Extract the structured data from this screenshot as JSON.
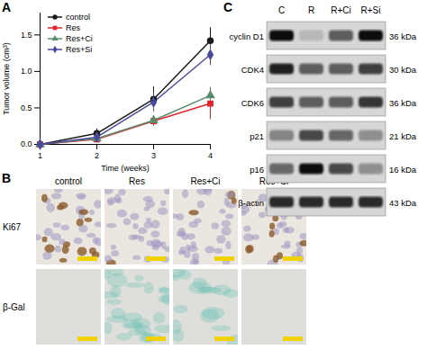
{
  "chart_data": {
    "type": "line",
    "x": [
      1,
      2,
      3,
      4
    ],
    "xlabel": "Time (weeks)",
    "ylabel": "Tumor volume (cm³)",
    "xlim": [
      1,
      4
    ],
    "ylim": [
      0,
      1.8
    ],
    "xticks": [
      1,
      2,
      3,
      4
    ],
    "yticks": [
      {
        "value": 0,
        "label": "0.0"
      },
      {
        "value": 0.5,
        "label": "0.5"
      },
      {
        "value": 1,
        "label": "1.0"
      },
      {
        "value": 1.5,
        "label": "1.5"
      }
    ],
    "legend": "top-left",
    "series": [
      {
        "name": "control",
        "color": "#1a1a1a",
        "marker": "circle",
        "values": [
          0,
          0.15,
          0.62,
          1.42
        ],
        "errors": [
          0,
          0.06,
          0.17,
          0.18
        ]
      },
      {
        "name": "Res",
        "color": "#e0262b",
        "marker": "square",
        "values": [
          0,
          0.07,
          0.32,
          0.56
        ],
        "errors": [
          0,
          0.03,
          0.07,
          0.22
        ]
      },
      {
        "name": "Res+Ci",
        "color": "#5b8c6e",
        "marker": "triangle",
        "values": [
          0,
          0.08,
          0.33,
          0.67
        ],
        "errors": [
          0,
          0.03,
          0.06,
          0.1
        ]
      },
      {
        "name": "Res+Si",
        "color": "#4a4a9c",
        "marker": "diamond",
        "values": [
          0,
          0.1,
          0.58,
          1.23
        ],
        "errors": [
          0,
          0.07,
          0.13,
          0.15
        ]
      }
    ]
  },
  "panels": [
    "A",
    "B",
    "C"
  ],
  "panel_b": {
    "columns": [
      "control",
      "Res",
      "Res+Ci",
      "Res+Si"
    ],
    "rows": [
      "Ki67",
      "β-Gal"
    ]
  },
  "panel_c": {
    "lanes": [
      "C",
      "R",
      "R+Ci",
      "R+Si"
    ],
    "rows": [
      {
        "name": "cyclin D1",
        "size": "36 kDa",
        "band_intensity": [
          1,
          0.15,
          0.6,
          1
        ]
      },
      {
        "name": "CDK4",
        "size": "30 kDa",
        "band_intensity": [
          0.9,
          0.6,
          0.6,
          0.75
        ]
      },
      {
        "name": "CDK6",
        "size": "36 kDa",
        "band_intensity": [
          0.75,
          0.6,
          0.6,
          0.8
        ]
      },
      {
        "name": "p21",
        "size": "21 kDa",
        "band_intensity": [
          0.4,
          0.7,
          0.55,
          0.35
        ]
      },
      {
        "name": "p16",
        "size": "16 kDa",
        "band_intensity": [
          0.55,
          1,
          0.7,
          0.35
        ]
      },
      {
        "name": "β-actin",
        "size": "43 kDa",
        "band_intensity": [
          0.85,
          0.85,
          0.85,
          0.85
        ]
      }
    ]
  }
}
